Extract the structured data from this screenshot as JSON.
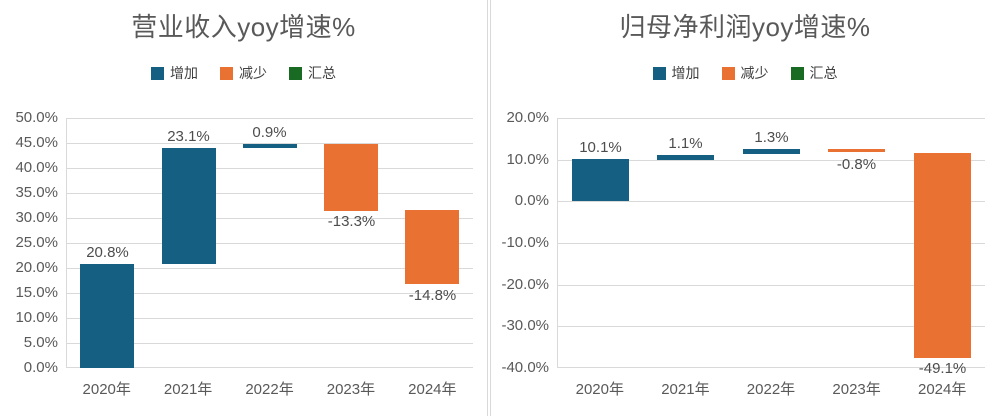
{
  "page": {
    "background": "#FFFFFF",
    "divider_color": "#D9D9D9"
  },
  "colors": {
    "increase": "#156082",
    "decrease": "#E97132",
    "total": "#196B24",
    "gridline": "#D9D9D9",
    "axis_text": "#595959",
    "data_label_text": "#4d4d4d"
  },
  "chart_data": [
    {
      "type": "bar",
      "subtype": "waterfall",
      "title": "营业收入yoy增速%",
      "legend": {
        "position": "top",
        "entries": [
          {
            "key": "increase",
            "label": "增加",
            "color": "#156082"
          },
          {
            "key": "decrease",
            "label": "减少",
            "color": "#E97132"
          },
          {
            "key": "total",
            "label": "汇总",
            "color": "#196B24"
          }
        ]
      },
      "categories": [
        "2020年",
        "2021年",
        "2022年",
        "2023年",
        "2024年"
      ],
      "values": [
        20.8,
        23.1,
        0.9,
        -13.3,
        -14.8
      ],
      "data_labels": [
        "20.8%",
        "23.1%",
        "0.9%",
        "-13.3%",
        "-14.8%"
      ],
      "bar_colors": [
        "#156082",
        "#156082",
        "#156082",
        "#E97132",
        "#E97132"
      ],
      "cumulative_levels": [
        20.8,
        43.9,
        44.8,
        31.5,
        16.7
      ],
      "ylim": [
        0,
        50
      ],
      "ystep": 5,
      "ytick_labels": [
        "50.0%",
        "45.0%",
        "40.0%",
        "35.0%",
        "30.0%",
        "25.0%",
        "20.0%",
        "15.0%",
        "10.0%",
        "5.0%",
        "0.0%"
      ],
      "grid": true,
      "xlabel": "",
      "ylabel": ""
    },
    {
      "type": "bar",
      "subtype": "waterfall",
      "title": "归母净利润yoy增速%",
      "legend": {
        "position": "top",
        "entries": [
          {
            "key": "increase",
            "label": "增加",
            "color": "#156082"
          },
          {
            "key": "decrease",
            "label": "减少",
            "color": "#E97132"
          },
          {
            "key": "total",
            "label": "汇总",
            "color": "#196B24"
          }
        ]
      },
      "categories": [
        "2020年",
        "2021年",
        "2022年",
        "2023年",
        "2024年"
      ],
      "values": [
        10.1,
        1.1,
        1.3,
        -0.8,
        -49.1
      ],
      "data_labels": [
        "10.1%",
        "1.1%",
        "1.3%",
        "-0.8%",
        "-49.1%"
      ],
      "bar_colors": [
        "#156082",
        "#156082",
        "#156082",
        "#E97132",
        "#E97132"
      ],
      "cumulative_levels": [
        10.1,
        11.2,
        12.5,
        11.7,
        -37.4
      ],
      "ylim": [
        -40,
        20
      ],
      "ystep": 10,
      "ytick_labels": [
        "20.0%",
        "10.0%",
        "0.0%",
        "-10.0%",
        "-20.0%",
        "-30.0%",
        "-40.0%"
      ],
      "grid": true,
      "xlabel": "",
      "ylabel": ""
    }
  ]
}
